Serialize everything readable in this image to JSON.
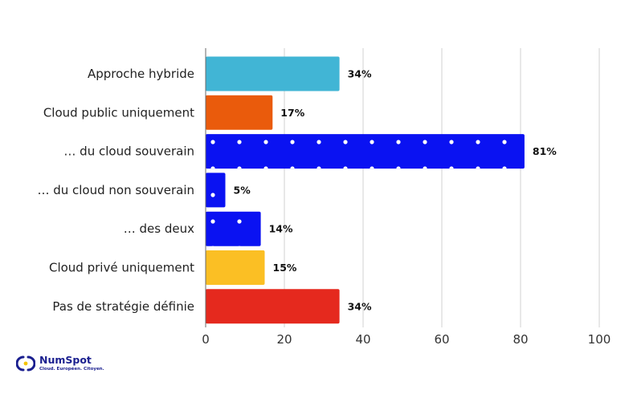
{
  "chart_data": {
    "type": "bar",
    "orientation": "horizontal",
    "title": "",
    "xlabel": "",
    "ylabel": "",
    "xlim": [
      0,
      100
    ],
    "x_ticks": [
      0,
      20,
      40,
      60,
      80,
      100
    ],
    "grid": true,
    "categories": [
      "Approche hybride",
      "Cloud public uniquement",
      "… du cloud souverain",
      "… du cloud non souverain",
      "… des deux",
      "Cloud privé uniquement",
      "Pas de stratégie définie"
    ],
    "values": [
      34,
      17,
      81,
      5,
      14,
      15,
      34
    ],
    "value_labels": [
      "34%",
      "17%",
      "81%",
      "5%",
      "14%",
      "15%",
      "34%"
    ],
    "colors": [
      "#41b5d5",
      "#ea5b0c",
      "#0a12f2",
      "#0a12f2",
      "#0a12f2",
      "#fbbf24",
      "#e5291e"
    ],
    "patterned": [
      false,
      false,
      true,
      true,
      true,
      false,
      false
    ]
  },
  "logo": {
    "brand": "NumSpot",
    "tagline": "Cloud. Européen. Citoyen.",
    "color": "#1a1f8f",
    "accent": "#f5c400"
  }
}
